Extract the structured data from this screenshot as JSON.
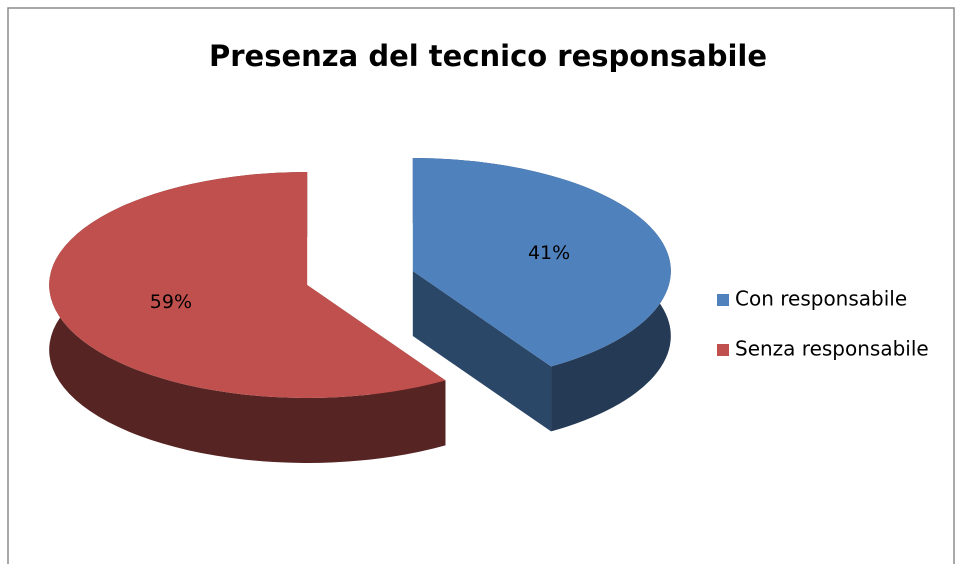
{
  "chart_data": {
    "type": "pie",
    "title": "Presenza del tecnico responsabile",
    "categories": [
      "Con responsabile",
      "Senza responsabile"
    ],
    "values": [
      41,
      59
    ],
    "value_labels": [
      "41%",
      "59%"
    ],
    "colors": [
      "#4f81bd",
      "#c0504d"
    ],
    "legend": "right"
  }
}
